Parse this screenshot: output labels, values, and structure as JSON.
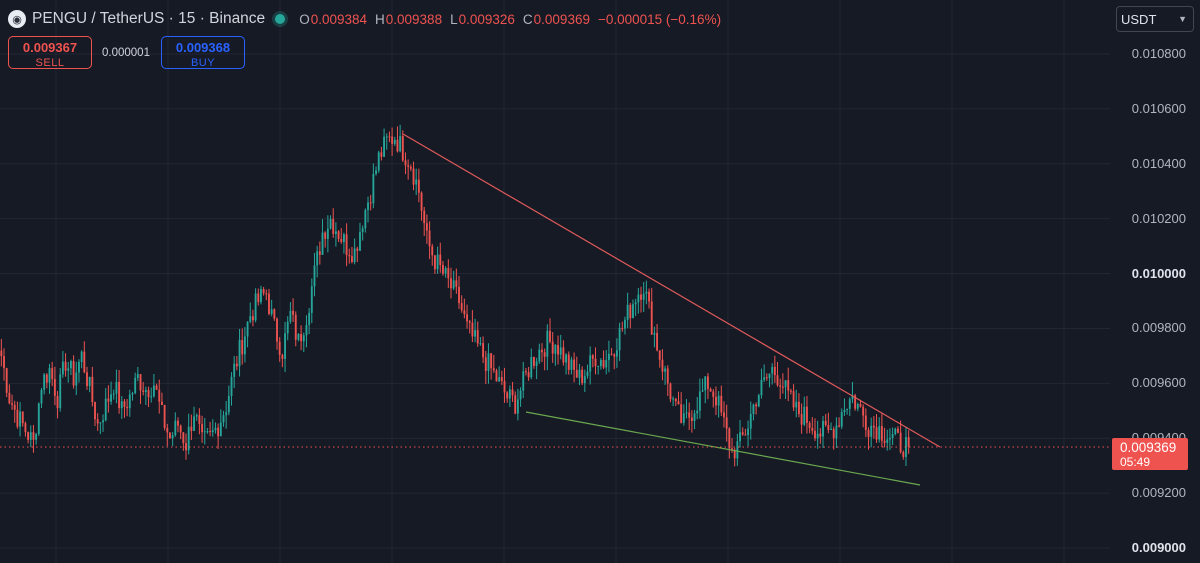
{
  "header": {
    "symbol_title": "PENGU / TetherUS · 15 · Binance",
    "logo_icon": "pengu-logo-icon",
    "ohlc": {
      "o_label": "O",
      "o": "0.009384",
      "h_label": "H",
      "h": "0.009388",
      "l_label": "L",
      "l": "0.009326",
      "c_label": "C",
      "c": "0.009369",
      "change": "−0.000015 (−0.16%)"
    }
  },
  "trade": {
    "sell_price": "0.009367",
    "sell_label": "SELL",
    "spread": "0.000001",
    "buy_price": "0.009368",
    "buy_label": "BUY"
  },
  "currency_select": "USDT",
  "price_scale": {
    "labels": [
      {
        "price": 0.0108,
        "text": "0.010800",
        "bold": false
      },
      {
        "price": 0.0106,
        "text": "0.010600",
        "bold": false
      },
      {
        "price": 0.0104,
        "text": "0.010400",
        "bold": false
      },
      {
        "price": 0.0102,
        "text": "0.010200",
        "bold": false
      },
      {
        "price": 0.01,
        "text": "0.010000",
        "bold": true
      },
      {
        "price": 0.0098,
        "text": "0.009800",
        "bold": false
      },
      {
        "price": 0.0096,
        "text": "0.009600",
        "bold": false
      },
      {
        "price": 0.0094,
        "text": "0.009400",
        "bold": false
      },
      {
        "price": 0.0092,
        "text": "0.009200",
        "bold": false
      },
      {
        "price": 0.009,
        "text": "0.009000",
        "bold": true
      }
    ]
  },
  "last_price": {
    "value": "0.009369",
    "countdown": "05:49"
  },
  "colors": {
    "background": "#161a25",
    "up": "#26a69a",
    "down": "#ef5350",
    "grid": "#232733",
    "resistance_line": "#e05a5a",
    "support_line": "#6aa84f"
  },
  "chart_data": {
    "type": "candlestick",
    "ylim": [
      0.0089,
      0.01118
    ],
    "close_path": [
      0.0097,
      0.00955,
      0.00948,
      0.00943,
      0.00938,
      0.0096,
      0.00965,
      0.00955,
      0.00968,
      0.00962,
      0.0097,
      0.00958,
      0.00945,
      0.00952,
      0.0096,
      0.0095,
      0.00955,
      0.00962,
      0.00958,
      0.0096,
      0.00948,
      0.0094,
      0.00945,
      0.00938,
      0.0095,
      0.00938,
      0.0094,
      0.00945,
      0.00952,
      0.00965,
      0.00975,
      0.00985,
      0.0099,
      0.00993,
      0.0098,
      0.00972,
      0.00985,
      0.00975,
      0.00985,
      0.01,
      0.01015,
      0.0102,
      0.01015,
      0.0101,
      0.01008,
      0.0102,
      0.0103,
      0.01042,
      0.01048,
      0.0105,
      0.01045,
      0.0104,
      0.0103,
      0.01012,
      0.01005,
      0.01,
      0.00995,
      0.0099,
      0.0098,
      0.00975,
      0.0097,
      0.00965,
      0.0096,
      0.00955,
      0.00953,
      0.0096,
      0.00968,
      0.00972,
      0.00975,
      0.00975,
      0.0097,
      0.00965,
      0.00962,
      0.00965,
      0.0097,
      0.00968,
      0.00972,
      0.00978,
      0.00985,
      0.00992,
      0.00996,
      0.00982,
      0.0097,
      0.0096,
      0.0095,
      0.00945,
      0.0095,
      0.00955,
      0.0096,
      0.00955,
      0.00945,
      0.00935,
      0.00938,
      0.00945,
      0.00955,
      0.0096,
      0.00965,
      0.00962,
      0.00955,
      0.0095,
      0.00948,
      0.00945,
      0.00942,
      0.00942,
      0.00945,
      0.00952,
      0.00955,
      0.0095,
      0.00945,
      0.00944,
      0.00942,
      0.0094,
      0.00938,
      0.00937
    ]
  }
}
